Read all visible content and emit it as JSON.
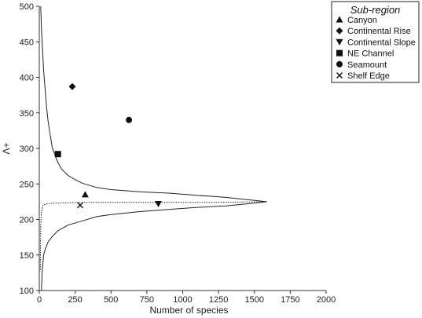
{
  "chart_data": {
    "type": "scatter",
    "xlabel": "Number of species",
    "ylabel": "Λ+",
    "xlim": [
      0,
      2000
    ],
    "ylim": [
      100,
      500
    ],
    "x_ticks": [
      0,
      250,
      500,
      750,
      1000,
      1250,
      1500,
      1750,
      2000
    ],
    "y_ticks": [
      100,
      150,
      200,
      250,
      300,
      350,
      400,
      450,
      500
    ],
    "legend": {
      "title": "Sub-region",
      "placement": "top-right"
    },
    "series": [
      {
        "name": "Canyon",
        "marker": "triangle-up",
        "points": [
          [
            320,
            235
          ]
        ]
      },
      {
        "name": "Continental Rise",
        "marker": "diamond",
        "points": [
          [
            230,
            387
          ]
        ]
      },
      {
        "name": "Continental Slope",
        "marker": "triangle-down",
        "points": [
          [
            830,
            222
          ]
        ]
      },
      {
        "name": "NE Channel",
        "marker": "square",
        "points": [
          [
            130,
            292
          ]
        ]
      },
      {
        "name": "Seamount",
        "marker": "circle",
        "points": [
          [
            625,
            340
          ]
        ]
      },
      {
        "name": "Shelf Edge",
        "marker": "x",
        "points": [
          [
            285,
            220
          ]
        ]
      }
    ],
    "funnel": {
      "line_style": "solid",
      "upper": [
        [
          10,
          500
        ],
        [
          15,
          470
        ],
        [
          20,
          450
        ],
        [
          25,
          430
        ],
        [
          30,
          410
        ],
        [
          40,
          385
        ],
        [
          50,
          360
        ],
        [
          60,
          340
        ],
        [
          75,
          320
        ],
        [
          90,
          302
        ],
        [
          110,
          290
        ],
        [
          130,
          280
        ],
        [
          160,
          270
        ],
        [
          200,
          262
        ],
        [
          250,
          256
        ],
        [
          300,
          251
        ],
        [
          400,
          245
        ],
        [
          500,
          242
        ],
        [
          700,
          239
        ],
        [
          900,
          237
        ],
        [
          1100,
          234
        ],
        [
          1300,
          231
        ],
        [
          1450,
          228
        ],
        [
          1585,
          225
        ]
      ],
      "lower": [
        [
          15,
          100
        ],
        [
          20,
          125
        ],
        [
          30,
          150
        ],
        [
          45,
          160
        ],
        [
          60,
          168
        ],
        [
          90,
          176
        ],
        [
          130,
          184
        ],
        [
          200,
          192
        ],
        [
          300,
          198
        ],
        [
          400,
          204
        ],
        [
          500,
          207
        ],
        [
          700,
          211
        ],
        [
          900,
          214
        ],
        [
          1100,
          217
        ],
        [
          1300,
          219
        ],
        [
          1450,
          222
        ],
        [
          1585,
          225
        ]
      ]
    },
    "mean_line": {
      "line_style": "dotted",
      "points": [
        [
          1585,
          225
        ],
        [
          1200,
          224
        ],
        [
          700,
          224
        ],
        [
          300,
          224
        ],
        [
          200,
          223.5
        ],
        [
          100,
          223
        ],
        [
          50,
          222
        ],
        [
          25,
          220
        ],
        [
          15,
          210
        ],
        [
          10,
          190
        ],
        [
          8,
          160
        ],
        [
          7,
          127
        ]
      ]
    }
  }
}
